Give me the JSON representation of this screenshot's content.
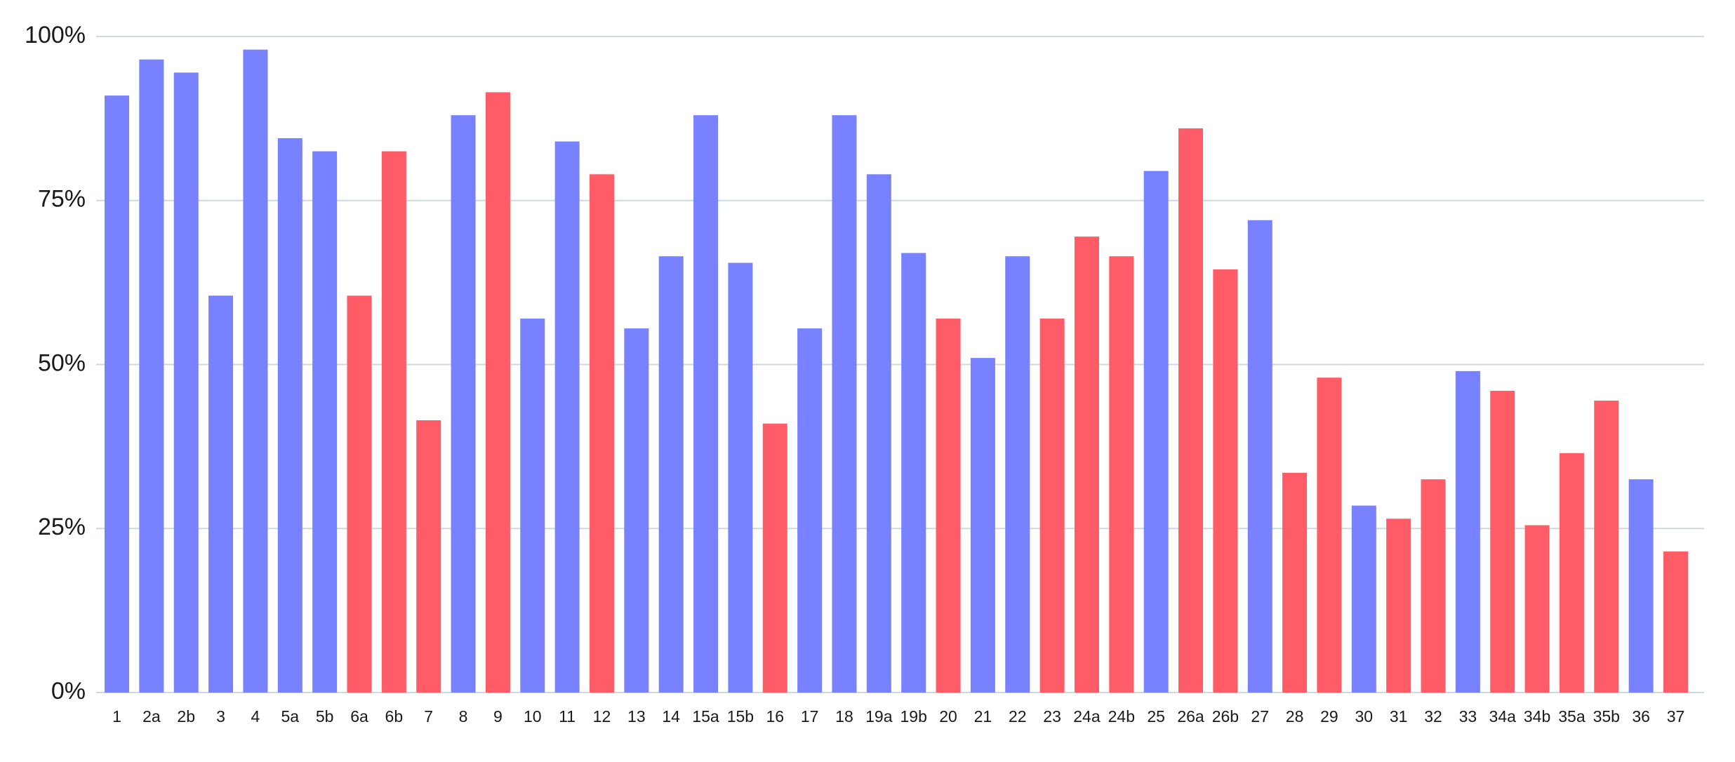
{
  "chart_data": {
    "type": "bar",
    "title": "",
    "xlabel": "",
    "ylabel": "",
    "ylim": [
      0,
      100
    ],
    "yticks": [
      "0%",
      "25%",
      "50%",
      "75%",
      "100%"
    ],
    "ytick_values": [
      0,
      25,
      50,
      75,
      100
    ],
    "grid": true,
    "legend": "none",
    "colors": {
      "blue": "#7881ff",
      "red": "#ff5c68"
    },
    "categories": [
      "1",
      "2a",
      "2b",
      "3",
      "4",
      "5a",
      "5b",
      "6a",
      "6b",
      "7",
      "8",
      "9",
      "10",
      "11",
      "12",
      "13",
      "14",
      "15a",
      "15b",
      "16",
      "17",
      "18",
      "19a",
      "19b",
      "20",
      "21",
      "22",
      "23",
      "24a",
      "24b",
      "25",
      "26a",
      "26b",
      "27",
      "28",
      "29",
      "30",
      "31",
      "32",
      "33",
      "34a",
      "34b",
      "35a",
      "35b",
      "36",
      "37"
    ],
    "values": [
      91,
      96.5,
      94.5,
      60.5,
      98,
      84.5,
      82.5,
      60.5,
      82.5,
      41.5,
      88,
      91.5,
      57,
      84,
      79,
      55.5,
      66.5,
      88,
      65.5,
      41,
      55.5,
      88,
      79,
      67,
      57,
      51,
      66.5,
      57,
      69.5,
      66.5,
      79.5,
      86,
      64.5,
      72,
      33.5,
      48,
      28.5,
      26.5,
      32.5,
      49,
      46,
      25.5,
      36.5,
      44.5,
      32.5,
      21.5
    ],
    "bar_colors": [
      "blue",
      "blue",
      "blue",
      "blue",
      "blue",
      "blue",
      "blue",
      "red",
      "red",
      "red",
      "blue",
      "red",
      "blue",
      "blue",
      "red",
      "blue",
      "blue",
      "blue",
      "blue",
      "red",
      "blue",
      "blue",
      "blue",
      "blue",
      "red",
      "blue",
      "blue",
      "red",
      "red",
      "red",
      "blue",
      "red",
      "red",
      "blue",
      "red",
      "red",
      "blue",
      "red",
      "red",
      "blue",
      "red",
      "red",
      "red",
      "red",
      "blue",
      "red"
    ]
  }
}
